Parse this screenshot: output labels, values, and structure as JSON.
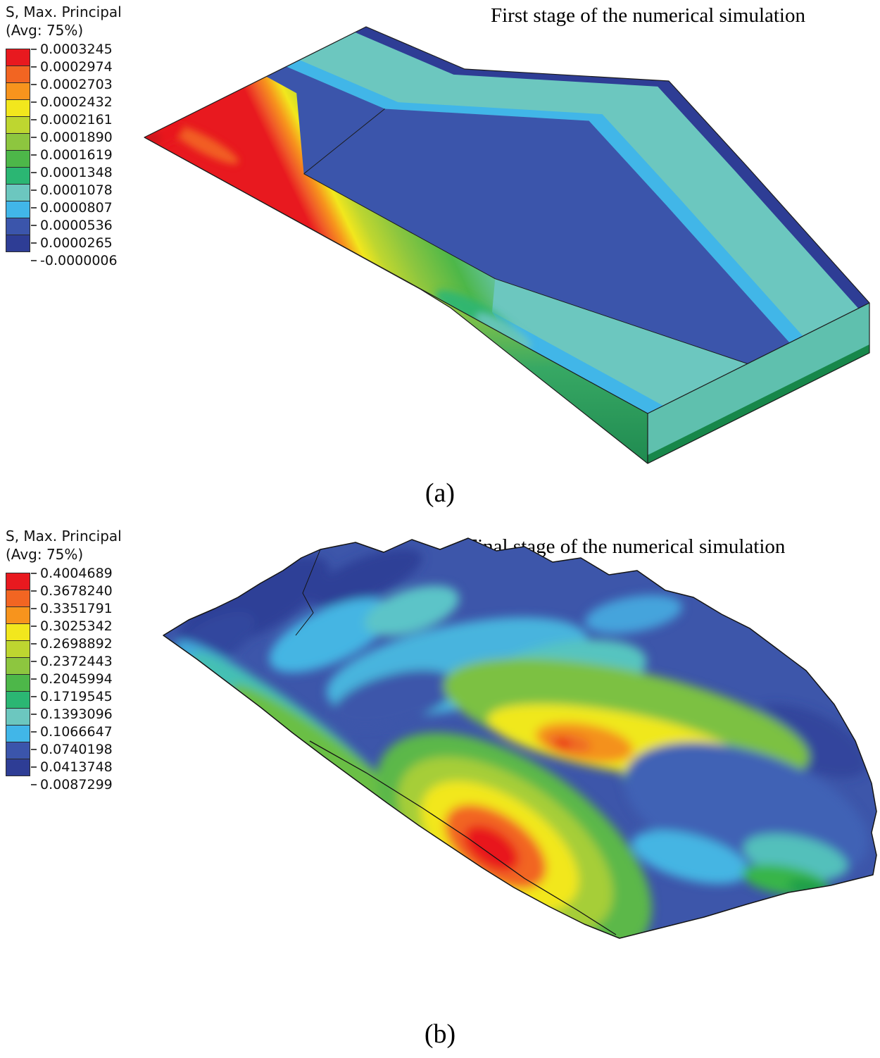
{
  "panels": {
    "a": {
      "caption": "(a)",
      "title": "First stage of the numerical simulation",
      "legend": {
        "title_line1": "S, Max. Principal",
        "title_line2": "(Avg: 75%)",
        "values": [
          "0.0003245",
          "0.0002974",
          "0.0002703",
          "0.0002432",
          "0.0002161",
          "0.0001890",
          "0.0001619",
          "0.0001348",
          "0.0001078",
          "0.0000807",
          "0.0000536",
          "0.0000265",
          "-0.0000006"
        ]
      }
    },
    "b": {
      "caption": "(b)",
      "title": "Final stage of the numerical simulation",
      "legend": {
        "title_line1": "S, Max. Principal",
        "title_line2": "(Avg: 75%)",
        "values": [
          "0.4004689",
          "0.3678240",
          "0.3351791",
          "0.3025342",
          "0.2698892",
          "0.2372443",
          "0.2045994",
          "0.1719545",
          "0.1393096",
          "0.1066647",
          "0.0740198",
          "0.0413748",
          "0.0087299"
        ]
      }
    }
  },
  "colors": [
    "#e8191f",
    "#f26522",
    "#f7941d",
    "#f2e71d",
    "#bed630",
    "#8dc63f",
    "#4db749",
    "#2bb673",
    "#6cc7bf",
    "#41b6e8",
    "#3b55ab",
    "#2e3d95"
  ],
  "chart_data": [
    {
      "type": "heatmap",
      "title": "First stage of the numerical simulation",
      "variable": "S, Max. Principal",
      "averaging": "Avg: 75%",
      "scale_max": 0.0003245,
      "scale_min": -6e-07,
      "legend_values": [
        0.0003245,
        0.0002974,
        0.0002703,
        0.0002432,
        0.0002161,
        0.000189,
        0.0001619,
        0.0001348,
        0.0001078,
        8.07e-05,
        5.36e-05,
        2.65e-05,
        -6e-07
      ],
      "legend_colors": [
        "#e8191f",
        "#f26522",
        "#f7941d",
        "#f2e71d",
        "#bed630",
        "#8dc63f",
        "#4db749",
        "#2bb673",
        "#6cc7bf",
        "#41b6e8",
        "#3b55ab",
        "#2e3d95"
      ],
      "legend_position": "top-left",
      "subfigure": "(a)"
    },
    {
      "type": "heatmap",
      "title": "Final stage of the numerical simulation",
      "variable": "S, Max. Principal",
      "averaging": "Avg: 75%",
      "scale_max": 0.4004689,
      "scale_min": 0.0087299,
      "legend_values": [
        0.4004689,
        0.367824,
        0.3351791,
        0.3025342,
        0.2698892,
        0.2372443,
        0.2045994,
        0.1719545,
        0.1393096,
        0.1066647,
        0.0740198,
        0.0413748,
        0.0087299
      ],
      "legend_colors": [
        "#e8191f",
        "#f26522",
        "#f7941d",
        "#f2e71d",
        "#bed630",
        "#8dc63f",
        "#4db749",
        "#2bb673",
        "#6cc7bf",
        "#41b6e8",
        "#3b55ab",
        "#2e3d95"
      ],
      "legend_position": "top-left",
      "subfigure": "(b)"
    }
  ]
}
